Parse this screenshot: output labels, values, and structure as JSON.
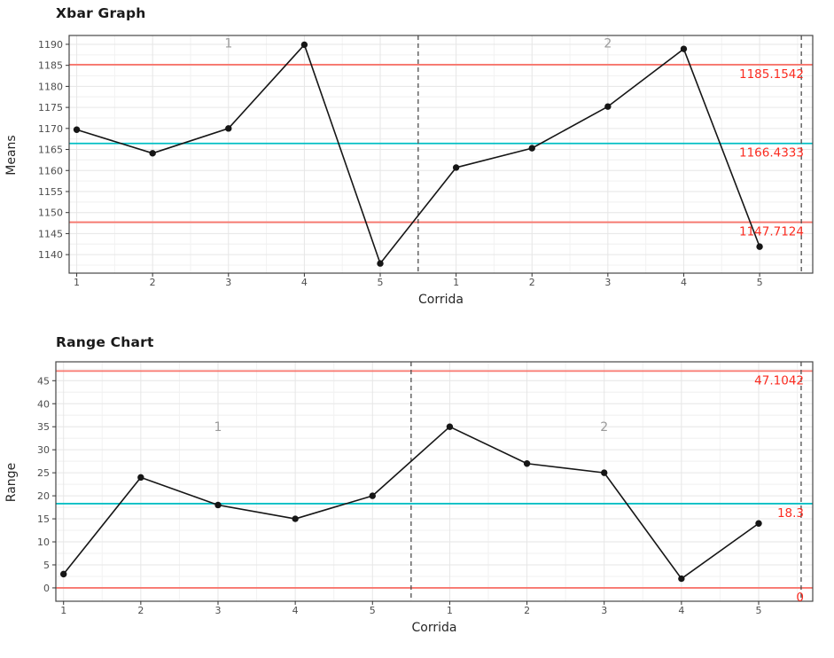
{
  "page": {
    "background": "#ffffff"
  },
  "colors": {
    "limit_line": "#f8766d",
    "center_line": "#00bfc4",
    "annotation_red": "#fb2b20",
    "series": "#161616",
    "grid_major": "#e6e6e6",
    "grid_minor": "#f2f2f2",
    "panel_border": "#474747",
    "axis_text": "#4d4d4d",
    "group_label": "#9a9a9a",
    "divider": "#4d4d4d"
  },
  "chart_data": [
    {
      "type": "line",
      "title": "Xbar Graph",
      "xlabel": "Corrida",
      "ylabel": "Means",
      "x": [
        1,
        2,
        3,
        4,
        5,
        6,
        7,
        8,
        9,
        10
      ],
      "x_tick_labels": [
        "1",
        "2",
        "3",
        "4",
        "5",
        "1",
        "2",
        "3",
        "4",
        "5"
      ],
      "values": [
        1169.7,
        1164.1,
        1170.0,
        1189.9,
        1137.9,
        1160.7,
        1165.3,
        1175.2,
        1188.9,
        1141.9
      ],
      "xlim": [
        0.9,
        10.7
      ],
      "ylim": [
        1135.6,
        1192.1
      ],
      "yticks": [
        1140,
        1145,
        1150,
        1155,
        1160,
        1165,
        1170,
        1175,
        1180,
        1185,
        1190
      ],
      "upper_limit": {
        "value": 1185.1542,
        "label": "1185.1542"
      },
      "center_line": {
        "value": 1166.4333,
        "label": "1166.4333"
      },
      "lower_limit": {
        "value": 1147.7124,
        "label": "1147.7124"
      },
      "dividers": [
        5.5,
        10.55
      ],
      "group_labels": [
        {
          "text": "1",
          "x": 3,
          "y": 1190.3
        },
        {
          "text": "2",
          "x": 8,
          "y": 1190.3
        }
      ],
      "grid": true,
      "legend": "none"
    },
    {
      "type": "line",
      "title": "Range Chart",
      "xlabel": "Corrida",
      "ylabel": "Range",
      "x": [
        1,
        2,
        3,
        4,
        5,
        6,
        7,
        8,
        9,
        10
      ],
      "x_tick_labels": [
        "1",
        "2",
        "3",
        "4",
        "5",
        "1",
        "2",
        "3",
        "4",
        "5"
      ],
      "values": [
        3,
        24,
        18,
        15,
        20,
        35,
        27,
        25,
        2,
        14
      ],
      "xlim": [
        0.9,
        10.7
      ],
      "ylim": [
        -2.9,
        49.1
      ],
      "yticks": [
        0,
        5,
        10,
        15,
        20,
        25,
        30,
        35,
        40,
        45
      ],
      "upper_limit": {
        "value": 47.1042,
        "label": "47.1042"
      },
      "center_line": {
        "value": 18.3,
        "label": "18.3"
      },
      "lower_limit": {
        "value": 0,
        "label": "0"
      },
      "dividers": [
        5.5,
        10.55
      ],
      "group_labels": [
        {
          "text": "1",
          "x": 3,
          "y": 35
        },
        {
          "text": "2",
          "x": 8,
          "y": 35
        }
      ],
      "grid": true,
      "legend": "none"
    }
  ]
}
